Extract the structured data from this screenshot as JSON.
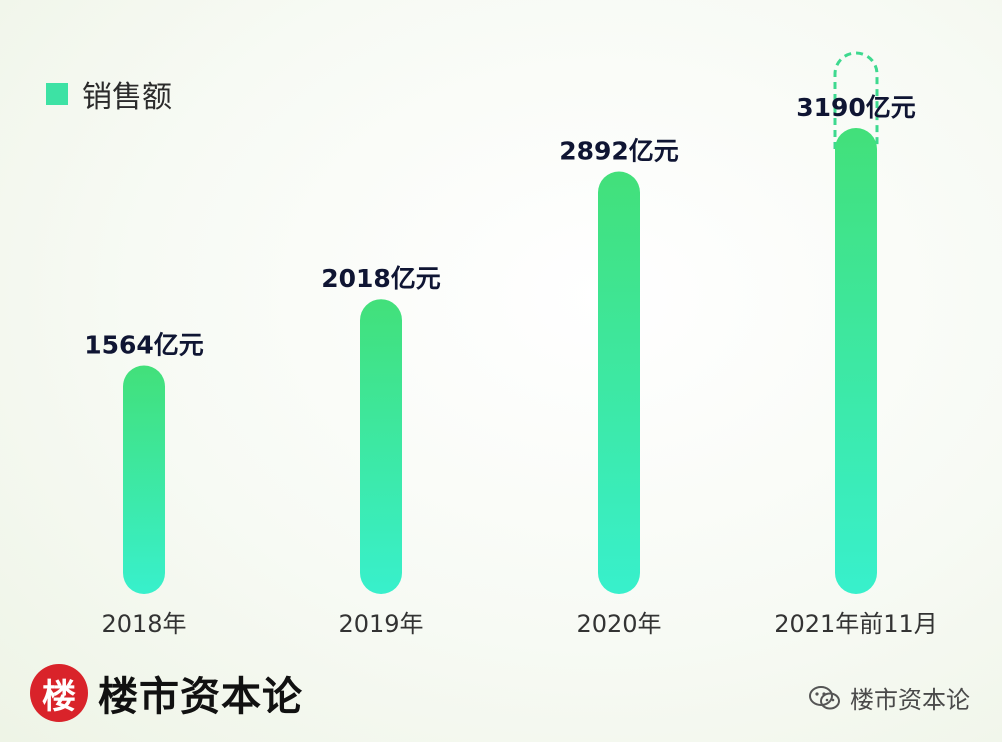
{
  "legend": {
    "label": "销售额",
    "color": "#3de2a4"
  },
  "brand": {
    "badge_char": "楼",
    "name": "楼市资本论",
    "badge_color": "#d9232a"
  },
  "watermark": {
    "text": "楼市资本论",
    "icon": "wechat-icon"
  },
  "chart_data": {
    "type": "bar",
    "categories": [
      "2018年",
      "2019年",
      "2020年",
      "2021年前11月"
    ],
    "series": [
      {
        "name": "销售额",
        "values": [
          1564,
          2018,
          2892,
          3190
        ]
      }
    ],
    "value_labels": [
      "1564亿元",
      "2018亿元",
      "2892亿元",
      "3190亿元"
    ],
    "dashed_extension_on": "2021年前11月",
    "colors": {
      "bar_top": "#42e07a",
      "bar_bottom": "#38f0cc",
      "dashed_outline": "#3ed98f",
      "value_label": "#0f1533",
      "category_label": "#333333"
    }
  }
}
